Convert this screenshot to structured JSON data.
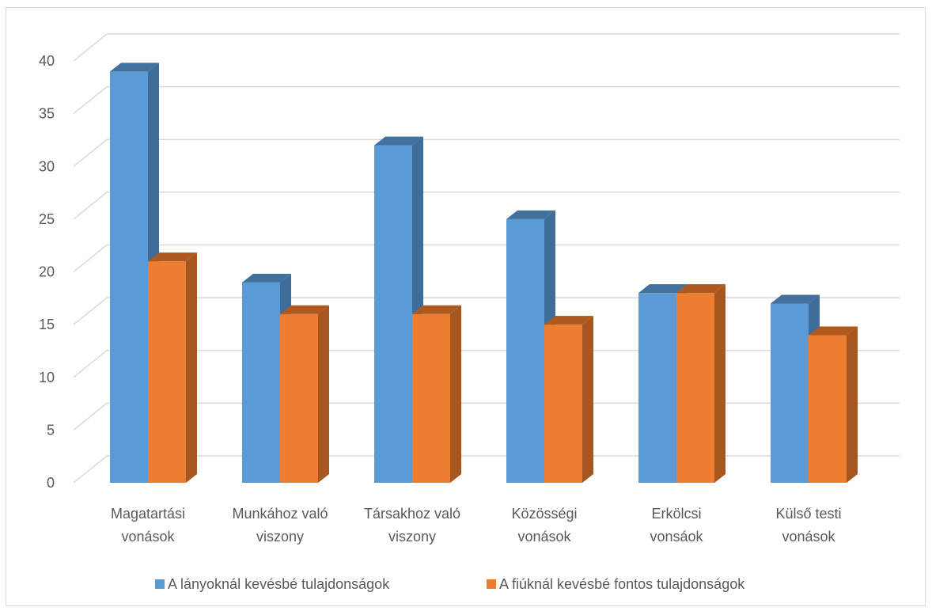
{
  "chart_data": {
    "type": "bar",
    "style": "3d-clustered-column",
    "categories": [
      [
        "Magatartási",
        "vonások"
      ],
      [
        "Munkához való",
        "viszony"
      ],
      [
        "Társakhoz való",
        "viszony"
      ],
      [
        "Közösségi",
        "vonások"
      ],
      [
        "Erkölcsi",
        "vonsáok"
      ],
      [
        "Külső testi",
        "vonások"
      ]
    ],
    "series": [
      {
        "name": "A lányoknál kevésbé tulajdonságok",
        "values": [
          39,
          19,
          32,
          25,
          18,
          17
        ],
        "color": "#5b9bd5",
        "side_color": "#3e6d9a",
        "top_color": "#41719c"
      },
      {
        "name": "A fiúknál kevésbé fontos tulajdonságok",
        "values": [
          21,
          16,
          16,
          15,
          18,
          14
        ],
        "color": "#ed7d31",
        "side_color": "#a6561f",
        "top_color": "#b0591f"
      }
    ],
    "ylim": [
      0,
      40
    ],
    "y_ticks": [
      0,
      5,
      10,
      15,
      20,
      25,
      30,
      35,
      40
    ],
    "grid": true,
    "legend_position": "bottom",
    "title": "",
    "xlabel": "",
    "ylabel": ""
  }
}
